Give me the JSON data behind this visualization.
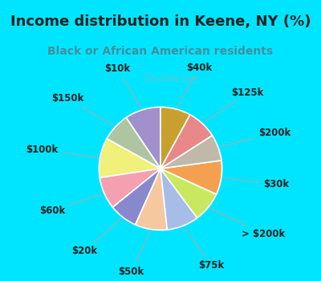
{
  "title": "Income distribution in Keene, NY (%)",
  "subtitle": "Black or African American residents",
  "watermark": "City-Data.com",
  "background_fig": "#00e5ff",
  "background_chart": "#d8ede4",
  "labels": [
    "$10k",
    "$150k",
    "$100k",
    "$60k",
    "$20k",
    "$50k",
    "$75k",
    "> $200k",
    "$30k",
    "$200k",
    "$125k",
    "$40k"
  ],
  "values": [
    9.5,
    7.5,
    10.5,
    8.5,
    7.5,
    8.5,
    8.5,
    8.0,
    9.0,
    7.0,
    8.0,
    8.0
  ],
  "colors": [
    "#a090cc",
    "#afc4a0",
    "#f0f07a",
    "#f4a0b0",
    "#8888cc",
    "#f5c8a0",
    "#a8bce8",
    "#c8e860",
    "#f5a050",
    "#c0b8a8",
    "#e88888",
    "#c8a030"
  ],
  "title_fontsize": 13,
  "subtitle_fontsize": 10,
  "label_fontsize": 8.5
}
